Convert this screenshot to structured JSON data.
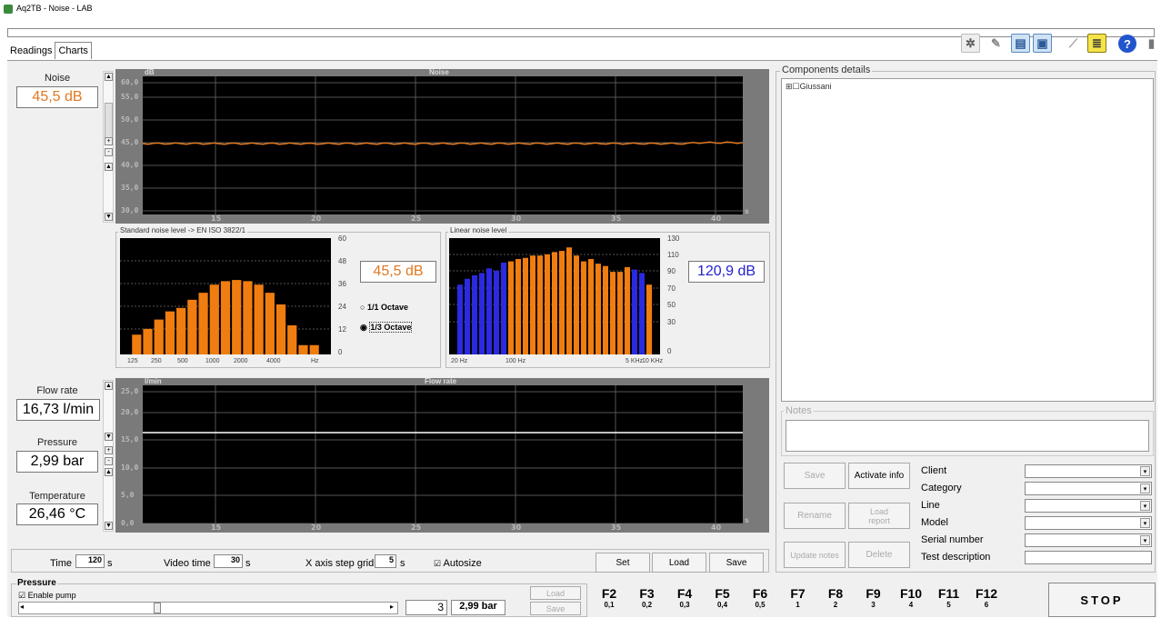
{
  "window": {
    "title": "Aq2TB - Noise - LAB"
  },
  "tabs": [
    "Readings",
    "Charts"
  ],
  "toolbar_icons": [
    "network-icon",
    "pen-icon",
    "computers-icon",
    "monitor-icon",
    "tools-icon",
    "document-icon",
    "help-icon",
    "exit-icon"
  ],
  "left": {
    "noise_label": "Noise",
    "noise_value": "45,5 dB",
    "flow_label": "Flow rate",
    "flow_value": "16,73 l/min",
    "pressure_label": "Pressure",
    "pressure_value": "2,99 bar",
    "temp_label": "Temperature",
    "temp_value": "26,46 °C"
  },
  "noise_chart": {
    "unit": "dB",
    "title": "Noise",
    "y_ticks": [
      "60,0",
      "55,0",
      "50,0",
      "45,0",
      "40,0",
      "35,0",
      "30,0"
    ],
    "x_ticks": [
      "15",
      "20",
      "25",
      "30",
      "35",
      "40"
    ],
    "x_unit": "s",
    "line_color": "#e07820"
  },
  "std_noise": {
    "title": "Standard noise level -> EN ISO 3822/1",
    "value": "45,5 dB",
    "y_ticks": [
      "60",
      "48",
      "36",
      "24",
      "12",
      "0"
    ],
    "x_ticks": [
      "125",
      "250",
      "500",
      "1000",
      "2000",
      "4000",
      "Hz"
    ],
    "opt1": "1/1 Octave",
    "opt2": "1/3 Octave"
  },
  "lin_noise": {
    "title": "Linear noise level",
    "value": "120,9 dB",
    "y_ticks": [
      "130",
      "110",
      "90",
      "70",
      "50",
      "30",
      "0"
    ],
    "x_ticks": [
      "20 Hz",
      "100 Hz",
      "5 KHz",
      "10 KHz"
    ]
  },
  "flow_chart": {
    "unit": "l/min",
    "title": "Flow rate",
    "y_ticks": [
      "25,0",
      "20,0",
      "15,0",
      "10,0",
      "5,0",
      "0,0"
    ],
    "x_ticks": [
      "15",
      "20",
      "25",
      "30",
      "35",
      "40"
    ],
    "x_unit": "s"
  },
  "bottom_settings": {
    "time_label": "Time",
    "time_value": "120",
    "time_unit": "s",
    "video_label": "Video time",
    "video_value": "30",
    "video_unit": "s",
    "xgrid_label": "X axis step grid",
    "xgrid_value": "5",
    "xgrid_unit": "s",
    "autosize": "Autosize",
    "set": "Set",
    "load": "Load",
    "save": "Save"
  },
  "components": {
    "title": "Components details",
    "tree_item": "Giussani",
    "notes": "Notes",
    "save": "Save",
    "activate": "Activate info",
    "rename": "Rename",
    "load_report": "Load report",
    "update_notes": "Update notes",
    "delete": "Delete",
    "fields": [
      "Client",
      "Category",
      "Line",
      "Model",
      "Serial number",
      "Test description"
    ]
  },
  "pressure_box": {
    "title": "Pressure",
    "enable_pump": "Enable pump",
    "step": "3",
    "value": "2,99 bar",
    "load": "Load",
    "save": "Save"
  },
  "fkeys": [
    {
      "k": "F2",
      "v": "0,1"
    },
    {
      "k": "F3",
      "v": "0,2"
    },
    {
      "k": "F4",
      "v": "0,3"
    },
    {
      "k": "F5",
      "v": "0,4"
    },
    {
      "k": "F6",
      "v": "0,5"
    },
    {
      "k": "F7",
      "v": "1"
    },
    {
      "k": "F8",
      "v": "2"
    },
    {
      "k": "F9",
      "v": "3"
    },
    {
      "k": "F10",
      "v": "4"
    },
    {
      "k": "F11",
      "v": "5"
    },
    {
      "k": "F12",
      "v": "6"
    }
  ],
  "stop": "STOP"
}
